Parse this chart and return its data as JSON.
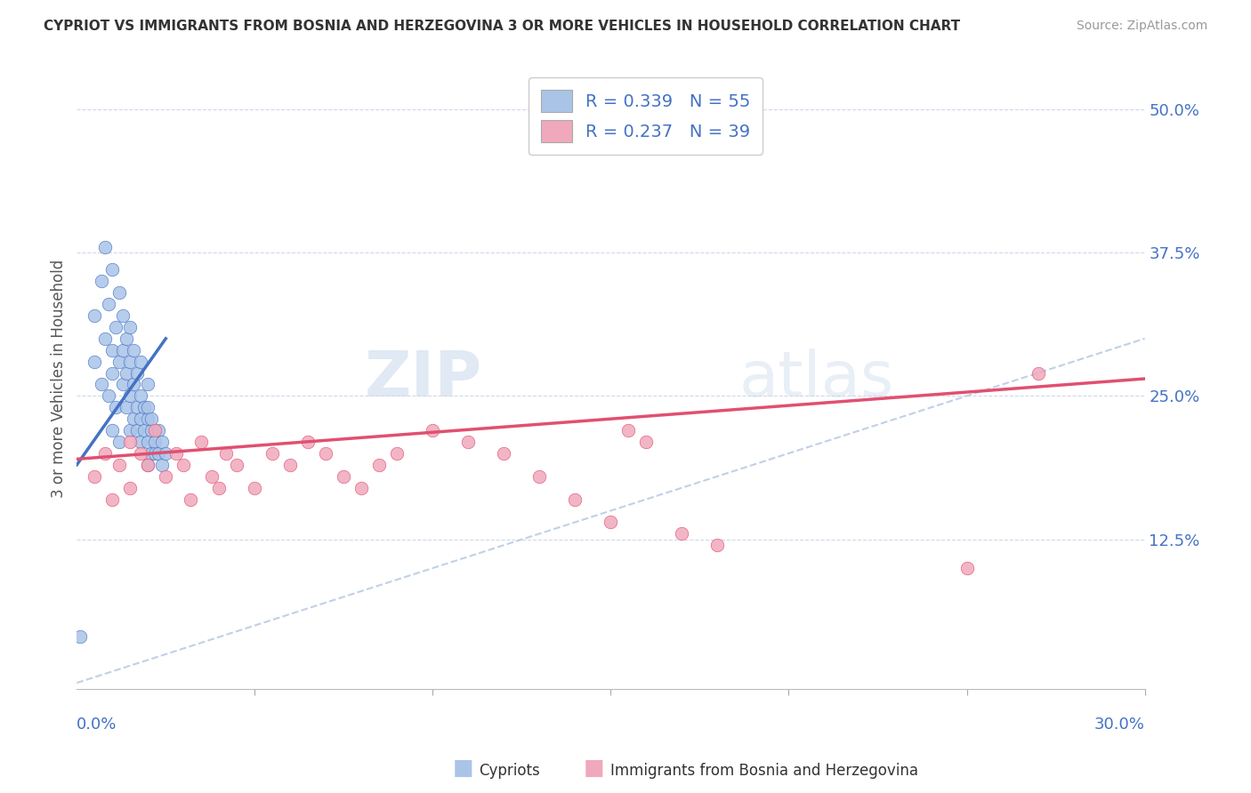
{
  "title": "CYPRIOT VS IMMIGRANTS FROM BOSNIA AND HERZEGOVINA 3 OR MORE VEHICLES IN HOUSEHOLD CORRELATION CHART",
  "source": "Source: ZipAtlas.com",
  "ylabel": "3 or more Vehicles in Household",
  "yticks": [
    "12.5%",
    "25.0%",
    "37.5%",
    "50.0%"
  ],
  "ytick_vals": [
    0.125,
    0.25,
    0.375,
    0.5
  ],
  "xlim": [
    0.0,
    0.3
  ],
  "ylim": [
    -0.005,
    0.535
  ],
  "cypriot_color": "#aac4e8",
  "immigrant_color": "#f0a8bc",
  "line_cypriot_color": "#4472c4",
  "line_immigrant_color": "#e05070",
  "diagonal_color": "#b8cce4",
  "cypriot_scatter_x": [
    0.005,
    0.005,
    0.007,
    0.007,
    0.008,
    0.008,
    0.009,
    0.009,
    0.01,
    0.01,
    0.01,
    0.01,
    0.011,
    0.011,
    0.012,
    0.012,
    0.012,
    0.013,
    0.013,
    0.013,
    0.014,
    0.014,
    0.014,
    0.015,
    0.015,
    0.015,
    0.015,
    0.016,
    0.016,
    0.016,
    0.017,
    0.017,
    0.017,
    0.018,
    0.018,
    0.018,
    0.018,
    0.019,
    0.019,
    0.02,
    0.02,
    0.02,
    0.02,
    0.02,
    0.021,
    0.021,
    0.021,
    0.022,
    0.022,
    0.023,
    0.023,
    0.024,
    0.024,
    0.025,
    0.001
  ],
  "cypriot_scatter_y": [
    0.32,
    0.28,
    0.35,
    0.26,
    0.3,
    0.38,
    0.25,
    0.33,
    0.29,
    0.36,
    0.22,
    0.27,
    0.31,
    0.24,
    0.34,
    0.28,
    0.21,
    0.29,
    0.26,
    0.32,
    0.27,
    0.24,
    0.3,
    0.28,
    0.25,
    0.22,
    0.31,
    0.26,
    0.23,
    0.29,
    0.27,
    0.24,
    0.22,
    0.25,
    0.23,
    0.21,
    0.28,
    0.24,
    0.22,
    0.26,
    0.23,
    0.21,
    0.19,
    0.24,
    0.22,
    0.2,
    0.23,
    0.21,
    0.2,
    0.22,
    0.2,
    0.21,
    0.19,
    0.2,
    0.04
  ],
  "immigrant_scatter_x": [
    0.005,
    0.008,
    0.01,
    0.012,
    0.015,
    0.015,
    0.018,
    0.02,
    0.022,
    0.025,
    0.028,
    0.03,
    0.032,
    0.035,
    0.038,
    0.04,
    0.042,
    0.045,
    0.05,
    0.055,
    0.06,
    0.065,
    0.07,
    0.075,
    0.08,
    0.085,
    0.09,
    0.1,
    0.11,
    0.12,
    0.13,
    0.14,
    0.15,
    0.155,
    0.16,
    0.17,
    0.18,
    0.25,
    0.27
  ],
  "immigrant_scatter_y": [
    0.18,
    0.2,
    0.16,
    0.19,
    0.21,
    0.17,
    0.2,
    0.19,
    0.22,
    0.18,
    0.2,
    0.19,
    0.16,
    0.21,
    0.18,
    0.17,
    0.2,
    0.19,
    0.17,
    0.2,
    0.19,
    0.21,
    0.2,
    0.18,
    0.17,
    0.19,
    0.2,
    0.22,
    0.21,
    0.2,
    0.18,
    0.16,
    0.14,
    0.22,
    0.21,
    0.13,
    0.12,
    0.1,
    0.27
  ],
  "cyp_line_x": [
    0.0,
    0.025
  ],
  "cyp_line_y": [
    0.19,
    0.3
  ],
  "imm_line_x": [
    0.0,
    0.3
  ],
  "imm_line_y": [
    0.195,
    0.265
  ]
}
